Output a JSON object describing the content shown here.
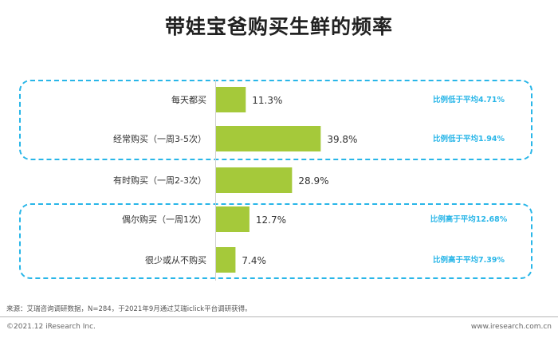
{
  "chart_data": {
    "type": "bar",
    "orientation": "horizontal",
    "title": "带娃宝爸购买生鲜的频率",
    "categories": [
      "每天都买",
      "经常购买（一周3-5次）",
      "有时购买（一周2-3次）",
      "偶尔购买（一周1次）",
      "很少或从不购买"
    ],
    "values": [
      11.3,
      39.8,
      28.9,
      12.7,
      7.4
    ],
    "value_labels": [
      "11.3%",
      "39.8%",
      "28.9%",
      "12.7%",
      "7.4%"
    ],
    "unit": "%",
    "bar_color": "#a5c93a",
    "annotations": [
      "比例低于平均4.71%",
      "比例低于平均1.94%",
      "",
      "比例高于平均12.68%",
      "比例高于平均7.39%"
    ],
    "annotation_color": "#29b6e8",
    "groups": [
      {
        "categories": [
          "每天都买",
          "经常购买（一周3-5次）"
        ],
        "style": "dashed-box"
      },
      {
        "categories": [
          "偶尔购买（一周1次）",
          "很少或从不购买"
        ],
        "style": "dashed-box"
      }
    ],
    "xlim": [
      0,
      45
    ]
  },
  "footer": {
    "source": "来源：艾瑞咨询调研数据，N=284，于2021年9月通过艾瑞iclick平台调研获得。",
    "copyright": "©2021.12 iResearch Inc.",
    "website": "www.iresearch.com.cn"
  }
}
